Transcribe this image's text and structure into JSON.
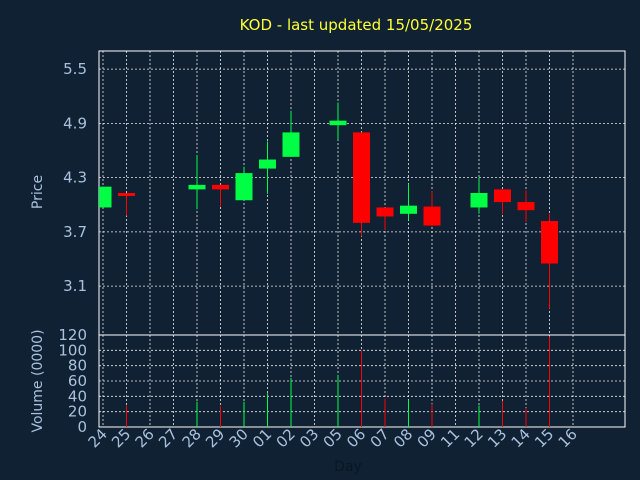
{
  "chart_data": {
    "type": "candlestick",
    "title": "KOD - last updated 15/05/2025",
    "ylabel_price": "Price",
    "ylabel_volume": "Volume (0000)",
    "xlabel": "Day",
    "price_ticks": [
      5.5,
      4.9,
      4.3,
      3.7,
      3.1
    ],
    "price_ylim": [
      2.56,
      5.7
    ],
    "volume_ticks": [
      0,
      20,
      40,
      60,
      80,
      100,
      120
    ],
    "volume_ylim": [
      0,
      120
    ],
    "up_color": "#00ff44",
    "down_color": "#ff0000",
    "grid": true,
    "days": [
      "24",
      "25",
      "26",
      "27",
      "28",
      "29",
      "30",
      "01",
      "02",
      "03",
      "05",
      "06",
      "07",
      "08",
      "09",
      "11",
      "12",
      "13",
      "14",
      "15",
      "16"
    ],
    "candles": [
      {
        "day": "24",
        "open": 3.97,
        "high": 4.2,
        "low": 3.97,
        "close": 4.2,
        "volume": 0
      },
      {
        "day": "25",
        "open": 4.13,
        "high": 4.13,
        "low": 3.88,
        "close": 4.1,
        "volume": 28
      },
      {
        "day": "28",
        "open": 4.17,
        "high": 4.55,
        "low": 3.95,
        "close": 4.22,
        "volume": 33
      },
      {
        "day": "29",
        "open": 4.22,
        "high": 4.22,
        "low": 3.98,
        "close": 4.17,
        "volume": 27
      },
      {
        "day": "30",
        "open": 4.05,
        "high": 4.42,
        "low": 4.05,
        "close": 4.35,
        "volume": 33
      },
      {
        "day": "01",
        "open": 4.4,
        "high": 4.7,
        "low": 4.12,
        "close": 4.5,
        "volume": 44
      },
      {
        "day": "02",
        "open": 4.53,
        "high": 5.04,
        "low": 4.53,
        "close": 4.8,
        "volume": 64
      },
      {
        "day": "05",
        "open": 4.88,
        "high": 5.13,
        "low": 4.72,
        "close": 4.93,
        "volume": 68
      },
      {
        "day": "06",
        "open": 4.8,
        "high": 4.8,
        "low": 3.65,
        "close": 3.8,
        "volume": 100
      },
      {
        "day": "07",
        "open": 3.97,
        "high": 3.97,
        "low": 3.72,
        "close": 3.87,
        "volume": 37
      },
      {
        "day": "08",
        "open": 3.9,
        "high": 4.23,
        "low": 3.83,
        "close": 3.99,
        "volume": 35
      },
      {
        "day": "09",
        "open": 3.98,
        "high": 4.15,
        "low": 3.76,
        "close": 3.77,
        "volume": 30
      },
      {
        "day": "12",
        "open": 3.97,
        "high": 4.3,
        "low": 3.9,
        "close": 4.13,
        "volume": 28
      },
      {
        "day": "13",
        "open": 4.17,
        "high": 4.17,
        "low": 3.9,
        "close": 4.03,
        "volume": 34
      },
      {
        "day": "14",
        "open": 4.03,
        "high": 4.16,
        "low": 3.81,
        "close": 3.94,
        "volume": 25
      },
      {
        "day": "15",
        "open": 3.82,
        "high": 3.9,
        "low": 2.85,
        "close": 3.35,
        "volume": 118
      }
    ]
  }
}
